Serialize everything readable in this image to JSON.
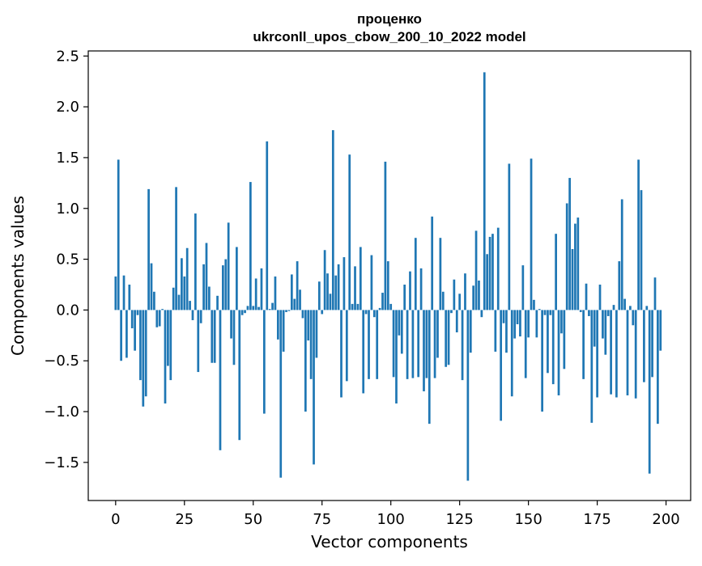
{
  "chart_data": {
    "type": "bar",
    "title": "проценко",
    "subtitle": "ukrconll_upos_cbow_200_10_2022 model",
    "xlabel": "Vector components",
    "ylabel": "Components values",
    "xlim": [
      -9.95,
      208.95
    ],
    "ylim": [
      -1.875,
      2.55
    ],
    "xticks": [
      0,
      25,
      50,
      75,
      100,
      125,
      150,
      175,
      200
    ],
    "xtick_labels": [
      "0",
      "25",
      "50",
      "75",
      "100",
      "125",
      "150",
      "175",
      "200"
    ],
    "yticks": [
      -1.5,
      -1.0,
      -0.5,
      0.0,
      0.5,
      1.0,
      1.5,
      2.0,
      2.5
    ],
    "ytick_labels": [
      "−1.5",
      "−1.0",
      "−0.5",
      "0.0",
      "0.5",
      "1.0",
      "1.5",
      "2.0",
      "2.5"
    ],
    "grid": false,
    "bar_color": "#1f77b4",
    "values": [
      0.33,
      1.48,
      -0.5,
      0.34,
      -0.47,
      0.25,
      -0.18,
      -0.4,
      -0.05,
      -0.69,
      -0.95,
      -0.85,
      1.19,
      0.46,
      0.18,
      -0.17,
      -0.16,
      0.01,
      -0.92,
      -0.55,
      -0.69,
      0.22,
      1.21,
      0.15,
      0.51,
      0.33,
      0.61,
      0.09,
      -0.1,
      0.95,
      -0.61,
      -0.13,
      0.45,
      0.66,
      0.23,
      -0.52,
      -0.52,
      0.14,
      -1.38,
      0.44,
      0.5,
      0.86,
      -0.28,
      -0.54,
      0.62,
      -1.28,
      -0.05,
      -0.03,
      0.04,
      1.26,
      0.04,
      0.31,
      0.03,
      0.41,
      -1.02,
      1.66,
      0.01,
      0.07,
      0.33,
      -0.29,
      -1.65,
      -0.41,
      -0.02,
      -0.01,
      0.35,
      0.11,
      0.48,
      0.2,
      -0.08,
      -1.0,
      -0.3,
      -0.68,
      -1.52,
      -0.47,
      0.28,
      -0.04,
      0.59,
      0.36,
      0.16,
      1.77,
      0.34,
      0.45,
      -0.86,
      0.52,
      -0.7,
      1.53,
      0.06,
      0.43,
      0.06,
      0.62,
      -0.82,
      -0.04,
      -0.68,
      0.54,
      -0.07,
      -0.68,
      0.02,
      0.17,
      1.46,
      0.48,
      0.06,
      -0.66,
      -0.92,
      -0.25,
      -0.43,
      0.25,
      -0.68,
      0.38,
      -0.67,
      0.71,
      -0.66,
      0.41,
      -0.8,
      -0.67,
      -1.12,
      0.92,
      -0.67,
      -0.47,
      0.71,
      0.18,
      -0.56,
      -0.54,
      -0.03,
      0.3,
      -0.22,
      0.16,
      -0.69,
      0.36,
      -1.68,
      -0.42,
      0.24,
      0.78,
      0.29,
      -0.07,
      2.34,
      0.55,
      0.72,
      0.75,
      -0.41,
      0.81,
      -1.09,
      -0.13,
      -0.42,
      1.44,
      -0.85,
      -0.28,
      -0.14,
      -0.26,
      0.44,
      -0.67,
      -0.27,
      1.49,
      0.1,
      -0.27,
      0.01,
      -1.0,
      -0.05,
      -0.62,
      -0.05,
      -0.73,
      0.75,
      -0.84,
      -0.23,
      -0.58,
      1.05,
      1.3,
      0.6,
      0.85,
      0.91,
      -0.02,
      -0.68,
      0.26,
      -0.06,
      -1.11,
      -0.36,
      -0.86,
      0.25,
      -0.28,
      -0.44,
      -0.06,
      -0.83,
      0.05,
      -0.86,
      0.48,
      1.09,
      0.11,
      -0.84,
      0.04,
      -0.15,
      -0.87,
      1.48,
      1.18,
      -0.71,
      0.04,
      -1.61,
      -0.66,
      0.32,
      -1.12,
      -0.4
    ]
  }
}
